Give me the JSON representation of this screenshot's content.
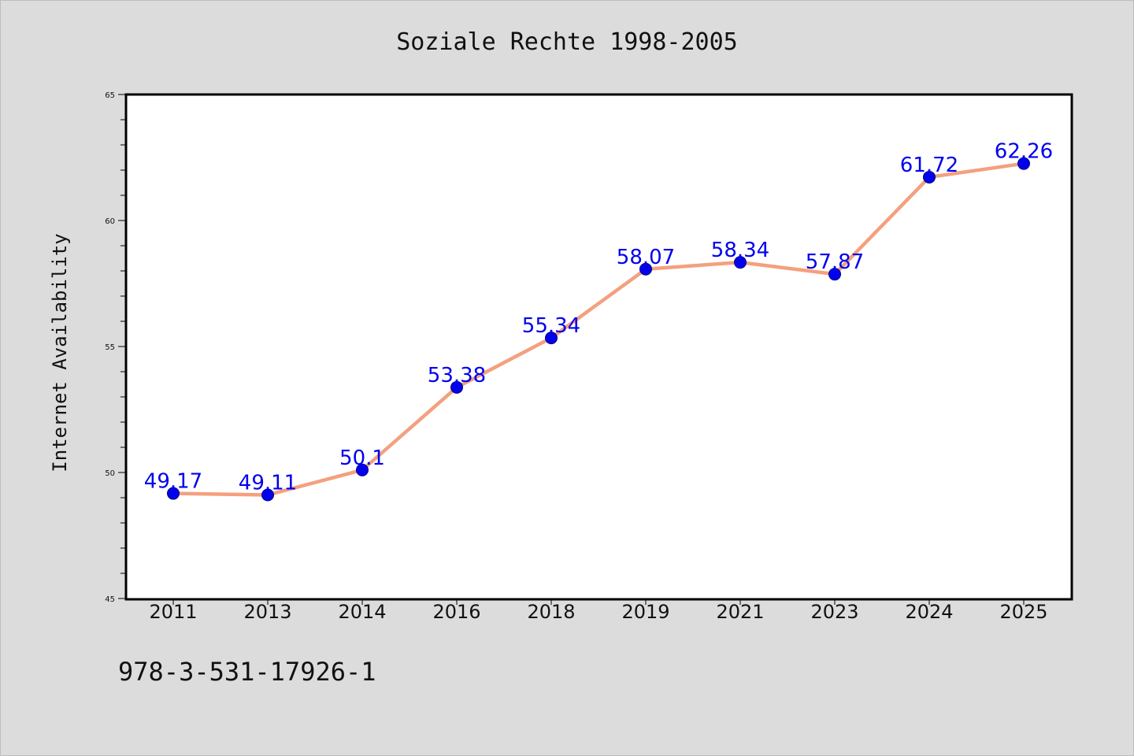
{
  "chart_data": {
    "type": "line",
    "title": "Soziale Rechte 1998-2005",
    "ylabel": "Internet Availability",
    "xlabel": "",
    "categories": [
      "2011",
      "2013",
      "2014",
      "2016",
      "2018",
      "2019",
      "2021",
      "2023",
      "2024",
      "2025"
    ],
    "series": [
      {
        "values": [
          49.17,
          49.11,
          50.1,
          53.38,
          55.34,
          58.07,
          58.34,
          57.87,
          61.72,
          62.26
        ],
        "data_labels": [
          "49.17",
          "49.11",
          "50.1",
          "53.38",
          "55.34",
          "58.07",
          "58.34",
          "57.87",
          "61.72",
          "62.26"
        ]
      }
    ],
    "ylim": [
      45,
      65
    ],
    "yticks": [
      "45",
      "50",
      "55",
      "60",
      "65"
    ],
    "grid": false,
    "legend": "none",
    "colors": {
      "line": "#f4a07f",
      "marker": "#0000ee",
      "marker_edge": "#000080",
      "data_label": "#0000ee",
      "background": "#dcdcdc",
      "plot_area": "#ffffff"
    }
  },
  "footnote": "978-3-531-17926-1"
}
